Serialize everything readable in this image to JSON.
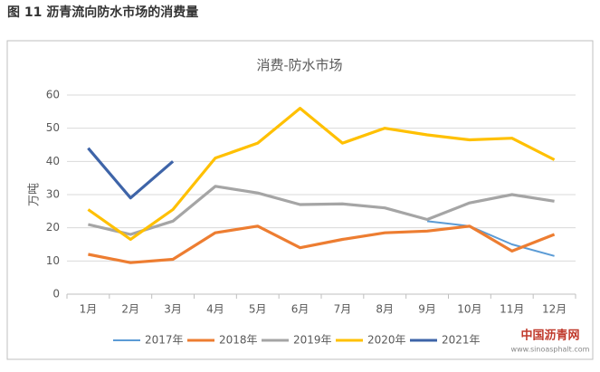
{
  "header": "图 11  沥青流向防水市场的消费量",
  "watermark": {
    "name": "中国沥青网",
    "url": "www.sinoasphalt.com"
  },
  "chart_data": {
    "type": "line",
    "title": "消费-防水市场",
    "y_label": "万吨",
    "categories": [
      "1月",
      "2月",
      "3月",
      "4月",
      "5月",
      "6月",
      "7月",
      "8月",
      "9月",
      "10月",
      "11月",
      "12月"
    ],
    "series": [
      {
        "name": "2017年",
        "color": "#5b9bd5",
        "values": [
          null,
          null,
          null,
          null,
          null,
          null,
          null,
          null,
          22,
          20.5,
          15,
          11.5
        ]
      },
      {
        "name": "2018年",
        "color": "#ed7d31",
        "values": [
          12,
          9.5,
          10.5,
          18.5,
          20.5,
          14,
          16.5,
          18.5,
          19,
          20.5,
          13,
          18
        ]
      },
      {
        "name": "2019年",
        "color": "#a5a5a5",
        "values": [
          21,
          18,
          22,
          32.5,
          30.5,
          27,
          27.2,
          26,
          22.5,
          27.5,
          30,
          28
        ]
      },
      {
        "name": "2020年",
        "color": "#ffc000",
        "values": [
          25.5,
          16.5,
          25.5,
          41,
          45.5,
          56,
          45.5,
          50,
          48,
          46.5,
          47,
          40.5
        ]
      },
      {
        "name": "2021年",
        "color": "#3e64a8",
        "values": [
          44,
          29,
          40,
          null,
          null,
          null,
          null,
          null,
          null,
          null,
          null,
          null
        ]
      }
    ],
    "ylim": [
      0,
      60
    ],
    "yticks": [
      0,
      10,
      20,
      30,
      40,
      50,
      60
    ],
    "grid": true,
    "legend": "bottom"
  }
}
